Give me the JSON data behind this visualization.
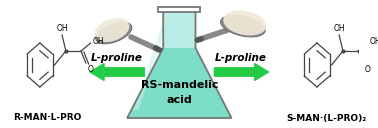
{
  "bg_color": "#ffffff",
  "flask_body_color": "#7ddec8",
  "flask_neck_color": "#b8ede5",
  "flask_edge_color": "#777777",
  "flask_liquid_color": "#5cc4b0",
  "flask_liquid_surface": "#7ddec8",
  "arrow_color": "#22cc44",
  "label_lproline_left": "L-proline",
  "label_lproline_right": "L-proline",
  "flask_label_line1": "RS-mandelic",
  "flask_label_line2": "acid",
  "label_left_compound": "R-MAN·L-PRO",
  "label_right_compound": "S-MAN·(L-PRO)₂",
  "font_size_arrow_label": 7.5,
  "font_size_flask_label": 8,
  "font_size_compound_label": 6.5,
  "chem_color": "#444444",
  "spoon_color": "#888888",
  "powder_color": "#ddd8b8",
  "powder_color2": "#f0ead8"
}
